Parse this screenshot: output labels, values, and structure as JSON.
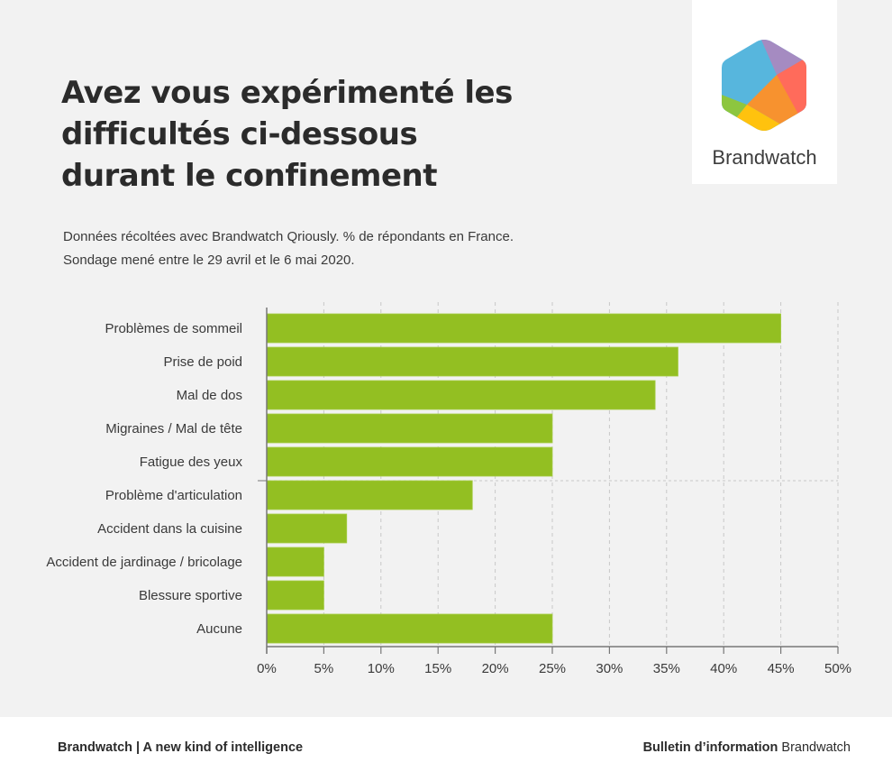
{
  "header": {
    "title_lines": [
      "Avez vous expérimenté les",
      "difficultés ci-dessous",
      "durant le confinement"
    ],
    "subtitle_lines": [
      "Données récoltées avec Brandwatch Qriously. % de répondants en France.",
      "Sondage mené entre le 29 avril et le 6 mai 2020."
    ]
  },
  "logo": {
    "icon": "brandwatch-hexagon-logo-icon",
    "text": "Brandwatch",
    "colors": [
      "#57b6dd",
      "#a58bc1",
      "#ff6b5b",
      "#f7922f",
      "#ffc20e",
      "#8dc63f"
    ]
  },
  "footer": {
    "left": "Brandwatch | A new kind of intelligence",
    "right_bold": "Bulletin d’information",
    "right_regular": " Brandwatch"
  },
  "chart_data": {
    "type": "bar",
    "orientation": "horizontal",
    "title": "Avez vous expérimenté les difficultés ci-dessous durant le confinement",
    "xlabel": "",
    "ylabel": "",
    "categories": [
      "Problèmes de sommeil",
      "Prise de poid",
      "Mal de dos",
      "Migraines / Mal de tête",
      "Fatigue des yeux",
      "Problème d'articulation",
      "Accident dans la cuisine",
      "Accident de jardinage / bricolage",
      "Blessure sportive",
      "Aucune"
    ],
    "values": [
      45,
      36,
      34,
      25,
      25,
      18,
      7,
      5,
      5,
      25
    ],
    "unit": "%",
    "xlim": [
      0,
      50
    ],
    "xticks": [
      "0%",
      "5%",
      "10%",
      "15%",
      "20%",
      "25%",
      "30%",
      "35%",
      "40%",
      "45%",
      "50%"
    ],
    "bar_color": "#93bf22",
    "grid": "vertical dashed",
    "legend": "none"
  }
}
